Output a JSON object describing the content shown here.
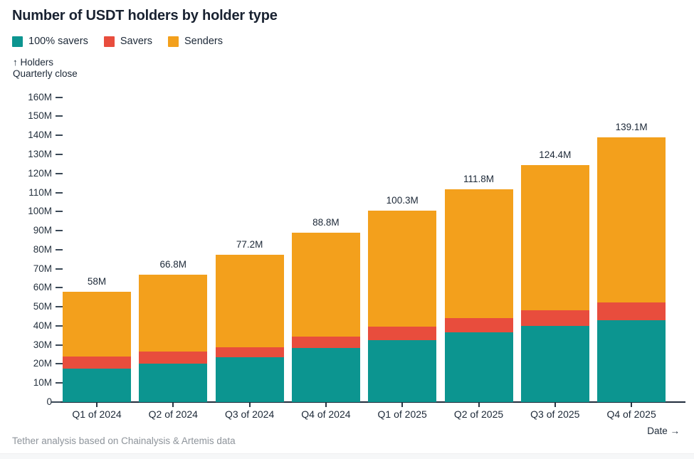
{
  "header": {
    "title": "Number of USDT holders by holder type"
  },
  "legend": {
    "items": [
      {
        "label": "100% savers",
        "color": "#0c9590"
      },
      {
        "label": "Savers",
        "color": "#e84d3d"
      },
      {
        "label": "Senders",
        "color": "#f3a01c"
      }
    ]
  },
  "footer": {
    "source": "Tether analysis based on Chainalysis & Artemis data",
    "x_axis_label": "Date →"
  },
  "chart_data": {
    "type": "bar",
    "stacked": true,
    "title": "Number of USDT holders by holder type",
    "categories": [
      "Q1 of 2024",
      "Q2 of 2024",
      "Q3 of 2024",
      "Q4 of 2024",
      "Q1 of 2025",
      "Q2 of 2025",
      "Q3 of 2025",
      "Q4 of 2025"
    ],
    "series": [
      {
        "name": "100% savers",
        "color": "#0c9590",
        "values": [
          17.4,
          20.0,
          23.6,
          28.4,
          32.6,
          36.5,
          39.9,
          43.0
        ]
      },
      {
        "name": "Savers",
        "color": "#e84d3d",
        "values": [
          6.5,
          6.4,
          5.3,
          5.9,
          6.9,
          7.7,
          8.3,
          9.3
        ]
      },
      {
        "name": "Senders",
        "color": "#f3a01c",
        "values": [
          34.1,
          40.4,
          48.3,
          54.5,
          60.8,
          67.6,
          76.2,
          86.8
        ]
      }
    ],
    "totals": [
      58,
      66.8,
      77.2,
      88.8,
      100.3,
      111.8,
      124.4,
      139.1
    ],
    "total_labels": [
      "58M",
      "66.8M",
      "77.2M",
      "88.8M",
      "100.3M",
      "111.8M",
      "124.4M",
      "139.1M"
    ],
    "y_axis": {
      "title_lines": [
        "↑ Holders",
        "Quarterly close"
      ],
      "min": 0,
      "max": 160,
      "step": 10,
      "tick_labels": [
        "0",
        "10M",
        "20M",
        "30M",
        "40M",
        "50M",
        "60M",
        "70M",
        "80M",
        "90M",
        "100M",
        "110M",
        "120M",
        "130M",
        "140M",
        "150M",
        "160M"
      ]
    },
    "x_axis": {
      "label": "Date →"
    },
    "legend_position": "top",
    "grid": false
  }
}
